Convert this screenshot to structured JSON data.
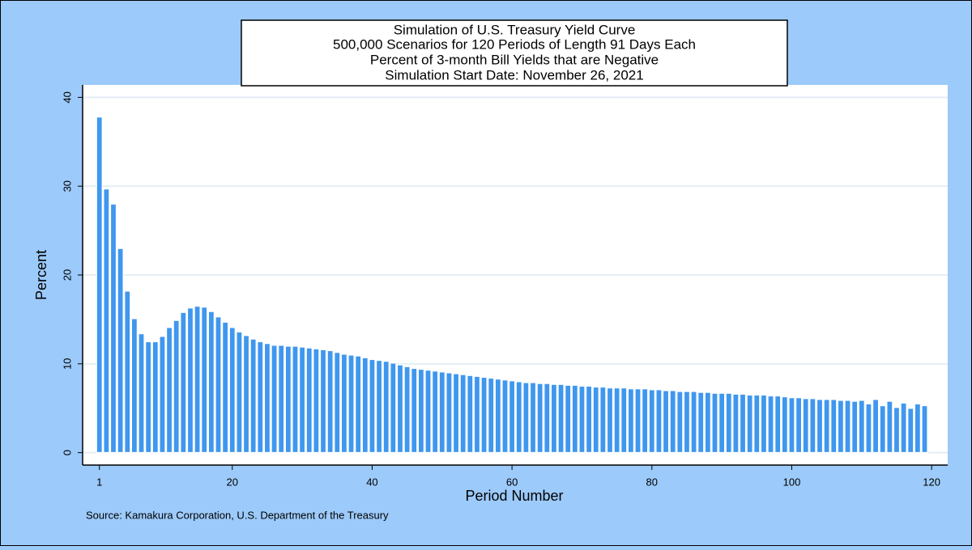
{
  "chart_data": {
    "type": "bar",
    "title": [
      "Simulation of U.S. Treasury Yield Curve",
      "500,000 Scenarios for 120 Periods of Length 91 Days Each",
      "Percent of 3-month Bill Yields that are Negative",
      "Simulation Start Date: November 26, 2021"
    ],
    "xlabel": "Period Number",
    "ylabel": "Percent",
    "source": "Source: Kamakura Corporation, U.S. Department of the Treasury",
    "color": "#3f97ee",
    "grid": true,
    "xlim": [
      -1.4,
      122.3
    ],
    "ylim": [
      -1.4,
      41.4
    ],
    "xticks": [
      1,
      20,
      40,
      60,
      80,
      100,
      120
    ],
    "yticks": [
      0,
      10,
      20,
      30,
      40
    ],
    "x": [
      1,
      2,
      3,
      4,
      5,
      6,
      7,
      8,
      9,
      10,
      11,
      12,
      13,
      14,
      15,
      16,
      17,
      18,
      19,
      20,
      21,
      22,
      23,
      24,
      25,
      26,
      27,
      28,
      29,
      30,
      31,
      32,
      33,
      34,
      35,
      36,
      37,
      38,
      39,
      40,
      41,
      42,
      43,
      44,
      45,
      46,
      47,
      48,
      49,
      50,
      51,
      52,
      53,
      54,
      55,
      56,
      57,
      58,
      59,
      60,
      61,
      62,
      63,
      64,
      65,
      66,
      67,
      68,
      69,
      70,
      71,
      72,
      73,
      74,
      75,
      76,
      77,
      78,
      79,
      80,
      81,
      82,
      83,
      84,
      85,
      86,
      87,
      88,
      89,
      90,
      91,
      92,
      93,
      94,
      95,
      96,
      97,
      98,
      99,
      100,
      101,
      102,
      103,
      104,
      105,
      106,
      107,
      108,
      109,
      110,
      111,
      112,
      113,
      114,
      115,
      116,
      117,
      118,
      119
    ],
    "values": [
      37.8,
      29.7,
      28.0,
      23.0,
      18.2,
      15.1,
      13.4,
      12.5,
      12.5,
      13.1,
      14.1,
      14.9,
      15.8,
      16.3,
      16.5,
      16.4,
      15.9,
      15.3,
      14.7,
      14.1,
      13.6,
      13.2,
      12.8,
      12.5,
      12.3,
      12.1,
      12.1,
      12.0,
      12.0,
      11.9,
      11.8,
      11.7,
      11.6,
      11.5,
      11.3,
      11.1,
      11.0,
      10.9,
      10.7,
      10.5,
      10.4,
      10.3,
      10.1,
      9.9,
      9.7,
      9.5,
      9.4,
      9.3,
      9.2,
      9.1,
      9.0,
      8.9,
      8.8,
      8.7,
      8.6,
      8.5,
      8.4,
      8.3,
      8.2,
      8.1,
      8.0,
      7.9,
      7.9,
      7.8,
      7.8,
      7.7,
      7.7,
      7.6,
      7.6,
      7.5,
      7.5,
      7.4,
      7.4,
      7.3,
      7.3,
      7.3,
      7.2,
      7.2,
      7.2,
      7.1,
      7.1,
      7.0,
      7.0,
      6.9,
      6.9,
      6.9,
      6.8,
      6.8,
      6.7,
      6.7,
      6.7,
      6.6,
      6.6,
      6.5,
      6.5,
      6.5,
      6.4,
      6.4,
      6.3,
      6.2,
      6.2,
      6.1,
      6.1,
      6.0,
      6.0,
      6.0,
      5.9,
      5.9,
      5.8,
      5.9,
      5.5,
      6.0,
      5.3,
      5.8,
      5.1,
      5.6,
      5.0,
      5.5,
      5.3
    ]
  }
}
